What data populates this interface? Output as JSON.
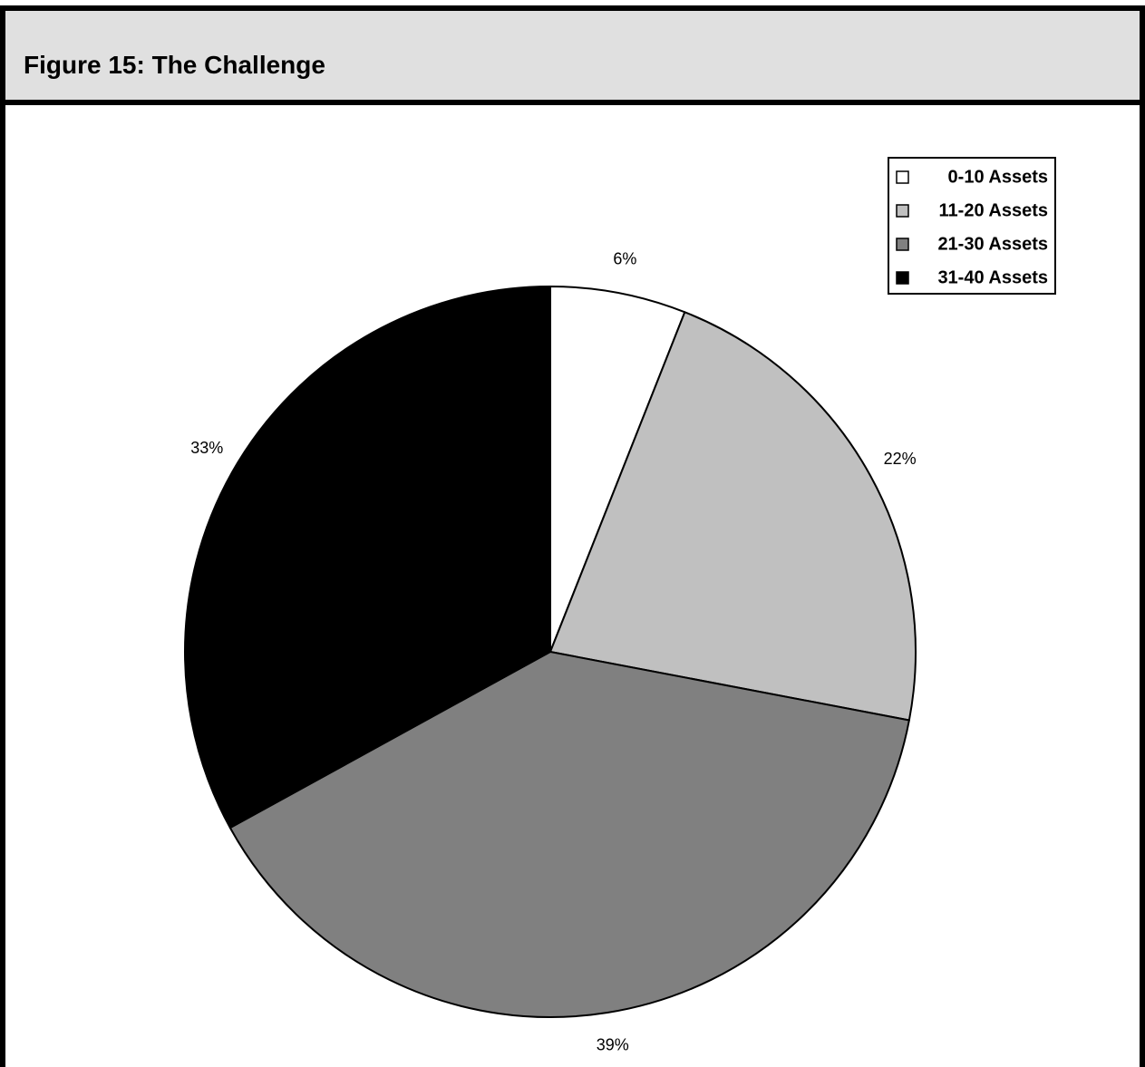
{
  "header": {
    "title": "Figure 15: The Challenge"
  },
  "chart_data": {
    "type": "pie",
    "title": "",
    "legend_position": "top-right",
    "categories": [
      "0-10 Assets",
      "11-20 Assets",
      "21-30 Assets",
      "31-40 Assets"
    ],
    "values": [
      6,
      22,
      39,
      33
    ],
    "labels": [
      "6%",
      "22%",
      "39%",
      "33%"
    ],
    "colors": [
      "#ffffff",
      "#c0c0c0",
      "#808080",
      "#000000"
    ],
    "start": "12 o'clock",
    "direction": "clockwise"
  }
}
